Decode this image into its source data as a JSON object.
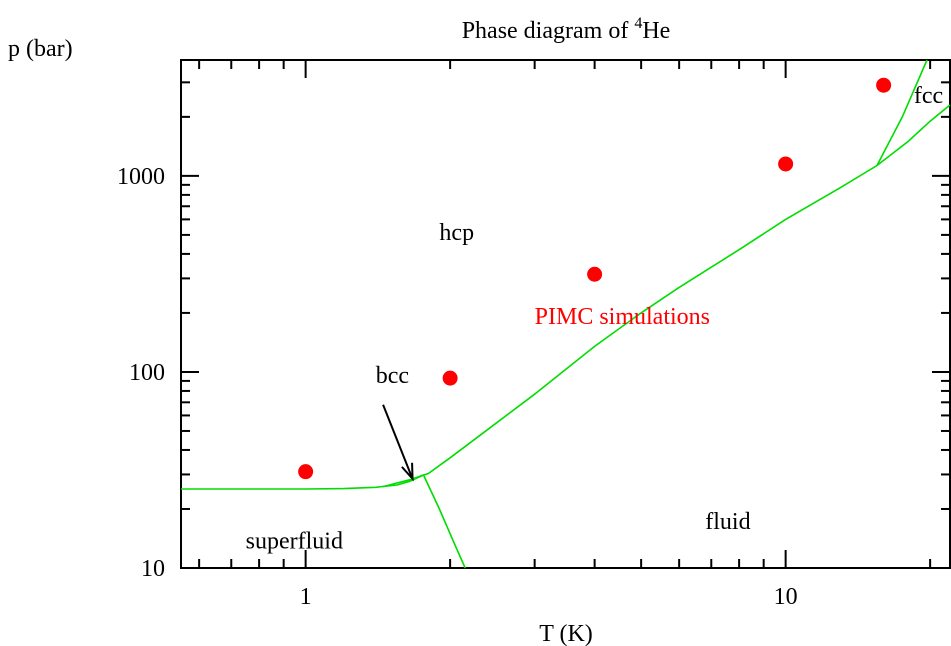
{
  "chart_data": {
    "type": "scatter",
    "title": "Phase diagram of ",
    "title_superscript": "4",
    "title_suffix": "He",
    "xlabel": "T (K)",
    "ylabel": "p (bar)",
    "xscale": "log",
    "yscale": "log",
    "xlim": [
      0.55,
      22
    ],
    "ylim": [
      10,
      3900
    ],
    "x_ticks": [
      1,
      10
    ],
    "x_tick_labels": [
      "1",
      "10"
    ],
    "y_ticks": [
      10,
      100,
      1000
    ],
    "y_tick_labels": [
      "10",
      "100",
      "1000"
    ],
    "grid": false,
    "series": [
      {
        "name": "PIMC simulations",
        "kind": "points",
        "color": "#ff0000",
        "x": [
          1.0,
          2.0,
          4.0,
          10.0,
          16.0
        ],
        "y": [
          31,
          93,
          315,
          1150,
          2900
        ]
      }
    ],
    "phase_boundaries": {
      "color": "#00dd00",
      "melting_curve": {
        "x": [
          0.55,
          0.8,
          1.0,
          1.2,
          1.4,
          1.55,
          1.65,
          1.76,
          1.8,
          2.0,
          2.5,
          3.0,
          4.0,
          5.0,
          6.0,
          8.0,
          10.0,
          13.0,
          15.5,
          18.0,
          20.0,
          22.0
        ],
        "y": [
          25.3,
          25.3,
          25.3,
          25.4,
          25.8,
          26.5,
          27.7,
          29.8,
          30.3,
          36.5,
          55,
          77,
          135,
          200,
          270,
          420,
          600,
          870,
          1130,
          1500,
          1900,
          2300
        ]
      },
      "lambda_line": {
        "x": [
          1.76,
          1.9,
          2.05,
          2.15
        ],
        "y": [
          29.8,
          20,
          13,
          10
        ]
      },
      "bcc_hcp_line": {
        "x": [
          1.45,
          1.65,
          1.76
        ],
        "y": [
          26.0,
          28.2,
          29.8
        ]
      },
      "fcc_hcp_line": {
        "x": [
          15.5,
          17.5,
          19.7
        ],
        "y": [
          1130,
          2000,
          3900
        ]
      }
    },
    "annotations": [
      {
        "text": "hcp",
        "x": 1.9,
        "y": 470,
        "color": "#000000"
      },
      {
        "text": "PIMC simulations",
        "x": 3.0,
        "y": 176,
        "color": "#ff0000"
      },
      {
        "text": "bcc",
        "x": 1.4,
        "y": 88,
        "color": "#000000"
      },
      {
        "text": "fluid",
        "x": 6.8,
        "y": 15.8,
        "color": "#000000"
      },
      {
        "text": "superfluid",
        "x": 0.75,
        "y": 12.6,
        "color": "#000000"
      },
      {
        "text": "fcc",
        "x": 18.5,
        "y": 2350,
        "color": "#000000"
      }
    ],
    "arrow": {
      "from": {
        "x": 1.45,
        "y": 68
      },
      "to": {
        "x": 1.67,
        "y": 28.5
      }
    },
    "stray_mark": {
      "x": 6.0,
      "y": 185,
      "color": "#ff0000"
    }
  }
}
